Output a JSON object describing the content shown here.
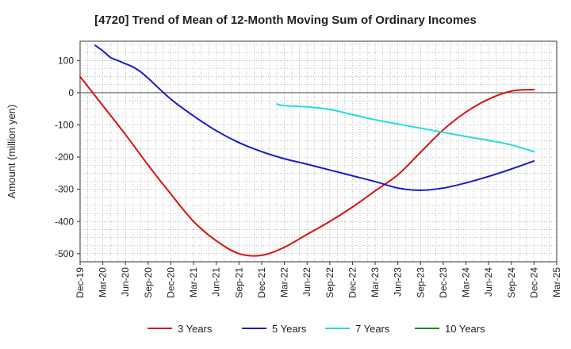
{
  "chart_data": {
    "type": "line",
    "title": "[4720]  Trend of Mean of 12-Month Moving Sum of Ordinary Incomes",
    "xlabel": "",
    "ylabel": "Amount (million yen)",
    "ylim": [
      -525,
      160
    ],
    "yticks": [
      100,
      0,
      -100,
      -200,
      -300,
      -400,
      -500
    ],
    "categories": [
      "Dec-19",
      "Mar-20",
      "Jun-20",
      "Sep-20",
      "Dec-20",
      "Mar-21",
      "Jun-21",
      "Sep-21",
      "Dec-21",
      "Mar-22",
      "Jun-22",
      "Sep-22",
      "Dec-22",
      "Mar-23",
      "Jun-23",
      "Sep-23",
      "Dec-23",
      "Mar-24",
      "Jun-24",
      "Sep-24",
      "Dec-24",
      "Mar-25"
    ],
    "series": [
      {
        "name": "3 Years",
        "color": "#dd1111",
        "x": [
          0,
          1,
          2,
          3,
          4,
          5,
          6,
          7,
          8,
          9,
          10,
          11,
          12,
          13,
          14,
          15,
          16,
          17,
          18,
          19,
          20
        ],
        "values": [
          50,
          -40,
          -130,
          -225,
          -315,
          -400,
          -460,
          -500,
          -505,
          -480,
          -440,
          -400,
          -355,
          -305,
          -255,
          -185,
          -115,
          -60,
          -20,
          5,
          10
        ]
      },
      {
        "name": "5 Years",
        "color": "#1a1acc",
        "x": [
          0.667,
          1,
          1.333,
          1.667,
          2,
          2.333,
          2.667,
          3,
          4,
          5,
          6,
          7,
          8,
          9,
          10,
          11,
          12,
          13,
          14,
          15,
          16,
          17,
          18,
          19,
          20
        ],
        "values": [
          147,
          130,
          110,
          100,
          90,
          80,
          65,
          45,
          -20,
          -72,
          -118,
          -155,
          -183,
          -205,
          -222,
          -240,
          -258,
          -276,
          -296,
          -303,
          -296,
          -280,
          -260,
          -237,
          -212
        ]
      },
      {
        "name": "7 Years",
        "color": "#22dddd",
        "x": [
          8.667,
          9,
          10,
          11,
          12,
          13,
          14,
          15,
          16,
          17,
          18,
          19,
          20
        ],
        "values": [
          -35,
          -40,
          -44,
          -52,
          -68,
          -84,
          -97,
          -110,
          -123,
          -136,
          -148,
          -162,
          -183
        ]
      },
      {
        "name": "10 Years",
        "color": "#228822",
        "x": [],
        "values": []
      }
    ],
    "legend": "bottom"
  }
}
